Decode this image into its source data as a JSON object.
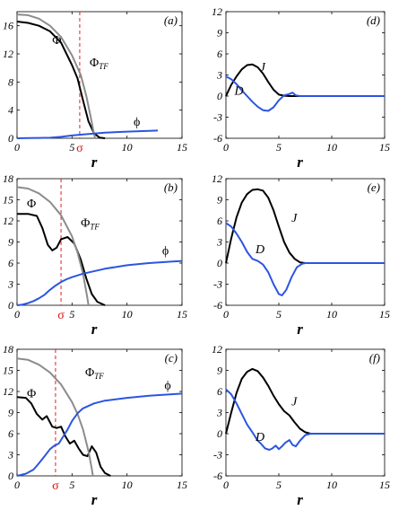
{
  "colors": {
    "black": "#000000",
    "gray": "#8c8c8c",
    "blue": "#2b55e0",
    "red": "#e02020"
  },
  "chart_data": [
    {
      "type": "line",
      "panel": "(a)",
      "xlabel": "r",
      "xlim": [
        0,
        15
      ],
      "ylim": [
        0,
        18
      ],
      "xticks": [
        0,
        5,
        10,
        15
      ],
      "yticks": [
        0,
        4,
        8,
        12,
        16
      ],
      "sigma_line": {
        "x": 5.7,
        "label": "σ"
      },
      "series": [
        {
          "name": "Φ",
          "label": "Φ",
          "color": "#000000",
          "points": [
            [
              0,
              16.6
            ],
            [
              1,
              16.4
            ],
            [
              2,
              16.0
            ],
            [
              3,
              15.2
            ],
            [
              4,
              13.6
            ],
            [
              5,
              10.4
            ],
            [
              5.5,
              8.5
            ],
            [
              6,
              5.4
            ],
            [
              6.5,
              2.4
            ],
            [
              7,
              0.7
            ],
            [
              7.5,
              0.1
            ],
            [
              8,
              0
            ]
          ]
        },
        {
          "name": "Φ_TF",
          "label": "Φ",
          "sub": "TF",
          "color": "#8c8c8c",
          "points": [
            [
              0,
              17.6
            ],
            [
              1,
              17.5
            ],
            [
              2,
              17.0
            ],
            [
              3,
              16.0
            ],
            [
              4,
              14.4
            ],
            [
              5,
              11.8
            ],
            [
              5.8,
              9.0
            ],
            [
              6.3,
              6.0
            ],
            [
              6.7,
              3.0
            ],
            [
              7,
              0.6
            ],
            [
              7.1,
              0
            ]
          ]
        },
        {
          "name": "ϕ",
          "label": "ϕ",
          "color": "#2b55e0",
          "points": [
            [
              0,
              0
            ],
            [
              1,
              0.02
            ],
            [
              2,
              0.05
            ],
            [
              3,
              0.08
            ],
            [
              4,
              0.2
            ],
            [
              5,
              0.4
            ],
            [
              6,
              0.55
            ],
            [
              8,
              0.8
            ],
            [
              10,
              0.95
            ],
            [
              12,
              1.05
            ],
            [
              12.8,
              1.1
            ]
          ]
        }
      ]
    },
    {
      "type": "line",
      "panel": "(d)",
      "xlabel": "r",
      "xlim": [
        0,
        15
      ],
      "ylim": [
        -6,
        12
      ],
      "xticks": [
        0,
        5,
        10,
        15
      ],
      "yticks": [
        -6,
        -3,
        0,
        3,
        6,
        9,
        12
      ],
      "series": [
        {
          "name": "J",
          "label": "J",
          "color": "#000000",
          "points": [
            [
              0,
              0
            ],
            [
              0.5,
              1.6
            ],
            [
              1,
              2.8
            ],
            [
              1.5,
              3.8
            ],
            [
              2,
              4.4
            ],
            [
              2.5,
              4.5
            ],
            [
              3,
              4.1
            ],
            [
              3.5,
              3.2
            ],
            [
              4,
              2.0
            ],
            [
              4.5,
              0.9
            ],
            [
              5,
              0.2
            ],
            [
              5.5,
              0.05
            ],
            [
              6,
              0
            ],
            [
              15,
              0
            ]
          ]
        },
        {
          "name": "D",
          "label": "D",
          "color": "#2b55e0",
          "points": [
            [
              0,
              2.8
            ],
            [
              0.5,
              2.4
            ],
            [
              1,
              1.7
            ],
            [
              1.5,
              0.8
            ],
            [
              2,
              0
            ],
            [
              2.5,
              -0.8
            ],
            [
              3,
              -1.5
            ],
            [
              3.5,
              -2.0
            ],
            [
              4,
              -2.1
            ],
            [
              4.5,
              -1.6
            ],
            [
              5,
              -0.6
            ],
            [
              5.5,
              0.1
            ],
            [
              6,
              0.3
            ],
            [
              6.3,
              0.5
            ],
            [
              6.6,
              0.1
            ],
            [
              7,
              0
            ],
            [
              15,
              0
            ]
          ]
        }
      ]
    },
    {
      "type": "line",
      "panel": "(b)",
      "xlabel": "r",
      "xlim": [
        0,
        15
      ],
      "ylim": [
        0,
        18
      ],
      "xticks": [
        0,
        5,
        10,
        15
      ],
      "yticks": [
        0,
        3,
        6,
        9,
        12,
        15,
        18
      ],
      "sigma_line": {
        "x": 4.0,
        "label": "σ"
      },
      "series": [
        {
          "name": "Φ",
          "label": "Φ",
          "color": "#000000",
          "points": [
            [
              0,
              13.0
            ],
            [
              1,
              13.0
            ],
            [
              1.8,
              12.7
            ],
            [
              2.3,
              11.0
            ],
            [
              2.8,
              8.6
            ],
            [
              3.2,
              7.8
            ],
            [
              3.6,
              8.2
            ],
            [
              4,
              9.4
            ],
            [
              4.6,
              9.7
            ],
            [
              5.2,
              8.8
            ],
            [
              5.8,
              6.5
            ],
            [
              6.3,
              3.8
            ],
            [
              6.8,
              1.6
            ],
            [
              7.3,
              0.5
            ],
            [
              8,
              0
            ]
          ]
        },
        {
          "name": "Φ_TF",
          "label": "Φ",
          "sub": "TF",
          "color": "#8c8c8c",
          "points": [
            [
              0,
              16.8
            ],
            [
              1,
              16.6
            ],
            [
              2,
              15.9
            ],
            [
              3,
              14.7
            ],
            [
              4,
              12.8
            ],
            [
              5,
              9.8
            ],
            [
              5.5,
              7.5
            ],
            [
              6,
              4.5
            ],
            [
              6.4,
              1.0
            ],
            [
              6.5,
              0
            ]
          ]
        },
        {
          "name": "ϕ",
          "label": "ϕ",
          "color": "#2b55e0",
          "points": [
            [
              0,
              0
            ],
            [
              0.5,
              0.1
            ],
            [
              1,
              0.3
            ],
            [
              1.5,
              0.6
            ],
            [
              2,
              1.0
            ],
            [
              2.5,
              1.5
            ],
            [
              3,
              2.2
            ],
            [
              3.5,
              2.8
            ],
            [
              4,
              3.3
            ],
            [
              4.5,
              3.7
            ],
            [
              5,
              4.0
            ],
            [
              6,
              4.5
            ],
            [
              8,
              5.2
            ],
            [
              10,
              5.7
            ],
            [
              12,
              6.0
            ],
            [
              14,
              6.2
            ],
            [
              15,
              6.3
            ]
          ]
        }
      ]
    },
    {
      "type": "line",
      "panel": "(e)",
      "xlabel": "r",
      "xlim": [
        0,
        15
      ],
      "ylim": [
        -6,
        12
      ],
      "xticks": [
        0,
        5,
        10,
        15
      ],
      "yticks": [
        -6,
        -3,
        0,
        3,
        6,
        9,
        12
      ],
      "series": [
        {
          "name": "J",
          "label": "J",
          "color": "#000000",
          "points": [
            [
              0,
              0
            ],
            [
              0.5,
              3.5
            ],
            [
              1,
              6.5
            ],
            [
              1.5,
              8.6
            ],
            [
              2,
              9.8
            ],
            [
              2.5,
              10.4
            ],
            [
              3,
              10.5
            ],
            [
              3.5,
              10.3
            ],
            [
              4,
              9.3
            ],
            [
              4.5,
              7.5
            ],
            [
              5,
              5.2
            ],
            [
              5.5,
              3.0
            ],
            [
              6,
              1.5
            ],
            [
              6.5,
              0.6
            ],
            [
              7,
              0.1
            ],
            [
              7.5,
              0
            ],
            [
              15,
              0
            ]
          ]
        },
        {
          "name": "D",
          "label": "D",
          "color": "#2b55e0",
          "points": [
            [
              0,
              5.7
            ],
            [
              0.5,
              5.2
            ],
            [
              1,
              4.2
            ],
            [
              1.5,
              3.0
            ],
            [
              2,
              1.6
            ],
            [
              2.5,
              0.6
            ],
            [
              3,
              0.3
            ],
            [
              3.5,
              -0.2
            ],
            [
              4,
              -1.3
            ],
            [
              4.5,
              -3.0
            ],
            [
              5,
              -4.4
            ],
            [
              5.3,
              -4.6
            ],
            [
              5.7,
              -3.8
            ],
            [
              6.2,
              -2.0
            ],
            [
              6.7,
              -0.6
            ],
            [
              7.2,
              -0.1
            ],
            [
              7.5,
              0
            ],
            [
              15,
              0
            ]
          ]
        }
      ]
    },
    {
      "type": "line",
      "panel": "(c)",
      "xlabel": "r",
      "xlim": [
        0,
        15
      ],
      "ylim": [
        0,
        18
      ],
      "xticks": [
        0,
        5,
        10,
        15
      ],
      "yticks": [
        0,
        3,
        6,
        9,
        12,
        15,
        18
      ],
      "sigma_line": {
        "x": 3.5,
        "label": "σ"
      },
      "series": [
        {
          "name": "Φ",
          "label": "Φ",
          "color": "#000000",
          "points": [
            [
              0,
              11.2
            ],
            [
              0.8,
              11.1
            ],
            [
              1.3,
              10.3
            ],
            [
              1.8,
              8.8
            ],
            [
              2.3,
              8.0
            ],
            [
              2.7,
              8.5
            ],
            [
              3.2,
              7.0
            ],
            [
              3.6,
              6.8
            ],
            [
              4,
              7.0
            ],
            [
              4.4,
              5.6
            ],
            [
              4.8,
              4.6
            ],
            [
              5.2,
              5.0
            ],
            [
              5.6,
              3.9
            ],
            [
              6,
              3.0
            ],
            [
              6.4,
              2.8
            ],
            [
              6.8,
              4.2
            ],
            [
              7.2,
              3.3
            ],
            [
              7.6,
              1.3
            ],
            [
              8,
              0.4
            ],
            [
              8.5,
              0
            ]
          ]
        },
        {
          "name": "Φ_TF",
          "label": "Φ",
          "sub": "TF",
          "color": "#8c8c8c",
          "points": [
            [
              0,
              16.7
            ],
            [
              1,
              16.5
            ],
            [
              2,
              15.8
            ],
            [
              3,
              14.7
            ],
            [
              4,
              13.0
            ],
            [
              5,
              10.5
            ],
            [
              5.5,
              8.8
            ],
            [
              6,
              6.6
            ],
            [
              6.5,
              3.5
            ],
            [
              6.8,
              1.0
            ],
            [
              6.9,
              0
            ]
          ]
        },
        {
          "name": "ϕ",
          "label": "ϕ",
          "color": "#2b55e0",
          "points": [
            [
              0,
              0
            ],
            [
              0.8,
              0.3
            ],
            [
              1.5,
              0.9
            ],
            [
              2,
              1.8
            ],
            [
              2.5,
              2.8
            ],
            [
              3,
              3.8
            ],
            [
              3.4,
              4.3
            ],
            [
              3.8,
              4.6
            ],
            [
              4.2,
              5.6
            ],
            [
              4.6,
              6.6
            ],
            [
              5,
              7.8
            ],
            [
              5.5,
              8.9
            ],
            [
              6,
              9.6
            ],
            [
              7,
              10.3
            ],
            [
              8,
              10.7
            ],
            [
              10,
              11.1
            ],
            [
              12,
              11.4
            ],
            [
              15,
              11.7
            ]
          ]
        }
      ]
    },
    {
      "type": "line",
      "panel": "(f)",
      "xlabel": "r",
      "xlim": [
        0,
        15
      ],
      "ylim": [
        -6,
        12
      ],
      "xticks": [
        0,
        5,
        10,
        15
      ],
      "yticks": [
        -6,
        -3,
        0,
        3,
        6,
        9,
        12
      ],
      "series": [
        {
          "name": "J",
          "label": "J",
          "color": "#000000",
          "points": [
            [
              0,
              0
            ],
            [
              0.5,
              3.0
            ],
            [
              1,
              5.8
            ],
            [
              1.5,
              7.8
            ],
            [
              2,
              8.8
            ],
            [
              2.5,
              9.2
            ],
            [
              3,
              8.9
            ],
            [
              3.5,
              8.0
            ],
            [
              4,
              6.8
            ],
            [
              4.5,
              5.4
            ],
            [
              5,
              4.2
            ],
            [
              5.5,
              3.2
            ],
            [
              6,
              2.6
            ],
            [
              6.5,
              1.6
            ],
            [
              7,
              0.7
            ],
            [
              7.5,
              0.2
            ],
            [
              8,
              0
            ],
            [
              15,
              0
            ]
          ]
        },
        {
          "name": "D",
          "label": "D",
          "color": "#2b55e0",
          "points": [
            [
              0,
              6.3
            ],
            [
              0.5,
              5.6
            ],
            [
              1,
              4.3
            ],
            [
              1.5,
              2.8
            ],
            [
              2,
              1.3
            ],
            [
              2.5,
              0.2
            ],
            [
              3,
              -1.0
            ],
            [
              3.3,
              -1.4
            ],
            [
              3.7,
              -2.1
            ],
            [
              4.1,
              -2.3
            ],
            [
              4.4,
              -2.1
            ],
            [
              4.7,
              -1.7
            ],
            [
              5,
              -2.2
            ],
            [
              5.3,
              -1.8
            ],
            [
              5.6,
              -1.3
            ],
            [
              6,
              -0.9
            ],
            [
              6.3,
              -1.6
            ],
            [
              6.6,
              -1.8
            ],
            [
              7,
              -1.0
            ],
            [
              7.5,
              -0.2
            ],
            [
              8,
              0
            ],
            [
              15,
              0
            ]
          ]
        }
      ]
    }
  ]
}
